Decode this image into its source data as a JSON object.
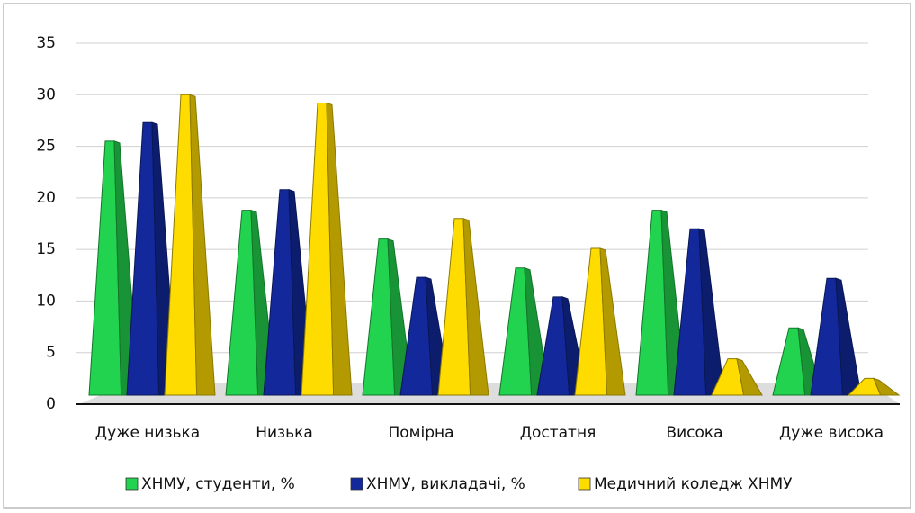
{
  "chart_data": {
    "type": "bar",
    "categories": [
      "Дуже низька",
      "Низька",
      "Помірна",
      "Достатня",
      "Висока",
      "Дуже висока"
    ],
    "series": [
      {
        "name": "ХНМУ, студенти, %",
        "color": "#22d34f",
        "values": [
          25.5,
          18.8,
          16,
          13.2,
          18.8,
          7.4
        ]
      },
      {
        "name": "ХНМУ, викладачі, %",
        "color": "#13299b",
        "values": [
          27.3,
          20.8,
          12.3,
          10.4,
          17,
          12.2
        ]
      },
      {
        "name": "Медичний коледж ХНМУ",
        "color": "#ffdc00",
        "values": [
          30,
          29.2,
          18,
          15.1,
          4.4,
          2.5
        ]
      }
    ],
    "ylim": [
      0,
      35
    ],
    "yticks": [
      0,
      5,
      10,
      15,
      20,
      25,
      30,
      35
    ],
    "grid": true,
    "legend": "bottom"
  }
}
